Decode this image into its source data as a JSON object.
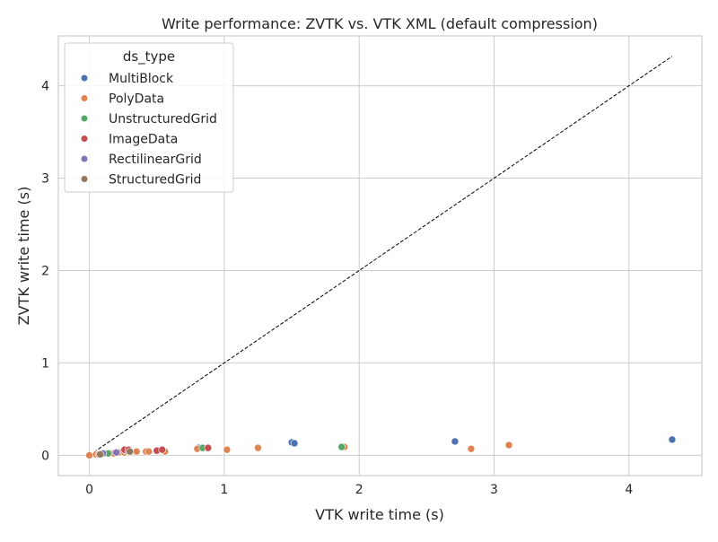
{
  "chart_data": {
    "type": "scatter",
    "title": "Write performance: ZVTK vs. VTK XML (default compression)",
    "xlabel": "VTK write time (s)",
    "ylabel": "ZVTK write time (s)",
    "xlim": [
      -0.23,
      4.54
    ],
    "ylim": [
      -0.22,
      4.54
    ],
    "xticks": [
      0,
      1,
      2,
      3,
      4
    ],
    "yticks": [
      0,
      1,
      2,
      3,
      4
    ],
    "grid": true,
    "legend": {
      "title": "ds_type",
      "placement": "top-left"
    },
    "reference_line": {
      "style": "dashed",
      "color": "#000000",
      "from": [
        0,
        0
      ],
      "to": [
        4.32,
        4.32
      ]
    },
    "series": [
      {
        "name": "MultiBlock",
        "color": "#4c72b0",
        "points": [
          [
            1.5,
            0.14
          ],
          [
            1.52,
            0.13
          ],
          [
            2.71,
            0.15
          ],
          [
            4.32,
            0.17
          ],
          [
            0.81,
            0.08
          ],
          [
            0.11,
            0.02
          ]
        ]
      },
      {
        "name": "PolyData",
        "color": "#dd8452",
        "points": [
          [
            0,
            0
          ],
          [
            0.05,
            0.01
          ],
          [
            0.07,
            0.01
          ],
          [
            0.09,
            0.01
          ],
          [
            0.12,
            0.02
          ],
          [
            0.15,
            0.02
          ],
          [
            0.18,
            0.02
          ],
          [
            0.22,
            0.03
          ],
          [
            0.26,
            0.03
          ],
          [
            0.35,
            0.04
          ],
          [
            0.42,
            0.04
          ],
          [
            0.44,
            0.04
          ],
          [
            0.56,
            0.04
          ],
          [
            0.8,
            0.07
          ],
          [
            1.02,
            0.06
          ],
          [
            1.25,
            0.08
          ],
          [
            1.89,
            0.09
          ],
          [
            2.83,
            0.07
          ],
          [
            3.11,
            0.11
          ]
        ]
      },
      {
        "name": "UnstructuredGrid",
        "color": "#55a868",
        "points": [
          [
            0.27,
            0.05
          ],
          [
            0.84,
            0.08
          ],
          [
            1.87,
            0.09
          ],
          [
            0.14,
            0.02
          ]
        ]
      },
      {
        "name": "ImageData",
        "color": "#c44e52",
        "points": [
          [
            0.26,
            0.06
          ],
          [
            0.29,
            0.06
          ],
          [
            0.5,
            0.05
          ],
          [
            0.54,
            0.06
          ],
          [
            0.88,
            0.08
          ]
        ]
      },
      {
        "name": "RectilinearGrid",
        "color": "#8172b3",
        "points": [
          [
            0.1,
            0.02
          ],
          [
            0.2,
            0.03
          ]
        ]
      },
      {
        "name": "StructuredGrid",
        "color": "#937860",
        "points": [
          [
            0.08,
            0.01
          ],
          [
            0.3,
            0.04
          ]
        ]
      }
    ]
  }
}
